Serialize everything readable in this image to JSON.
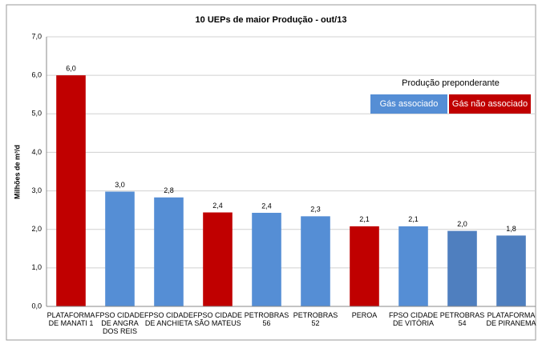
{
  "chart_data": {
    "type": "bar",
    "title": "10 UEPs de maior Produção - out/13",
    "y_label": "Milhões de m³/d",
    "categories": [
      "PLATAFORMA DE MANATI 1",
      "FPSO CIDADE DE ANGRA DOS REIS",
      "FPSO CIDADE DE ANCHIETA",
      "FPSO CIDADE SÃO MATEUS",
      "PETROBRAS 56",
      "PETROBRAS 52",
      "PEROA",
      "FPSO CIDADE DE VITÓRIA",
      "PETROBRAS 54",
      "PLATAFORMA DE PIRANEMA"
    ],
    "values": [
      6.0,
      2.98,
      2.83,
      2.44,
      2.43,
      2.34,
      2.08,
      2.08,
      1.96,
      1.84
    ],
    "value_labels": [
      "6,0",
      "3,0",
      "2,8",
      "2,4",
      "2,4",
      "2,3",
      "2,1",
      "2,1",
      "2,0",
      "1,8"
    ],
    "colors": [
      "#c00000",
      "#558ed5",
      "#558ed5",
      "#c00000",
      "#558ed5",
      "#558ed5",
      "#c00000",
      "#558ed5",
      "#4f7fbf",
      "#4f7fbf"
    ],
    "ylim": [
      0,
      7
    ],
    "yticks": [
      {
        "value": 0,
        "label": "0,0"
      },
      {
        "value": 1,
        "label": "1,0"
      },
      {
        "value": 2,
        "label": "2,0"
      },
      {
        "value": 3,
        "label": "3,0"
      },
      {
        "value": 4,
        "label": "4,0"
      },
      {
        "value": 5,
        "label": "5,0"
      },
      {
        "value": 6,
        "label": "6,0"
      },
      {
        "value": 7,
        "label": "7,0"
      }
    ],
    "grid": true,
    "legend": {
      "title": "Produção preponderante",
      "items": [
        {
          "label": "Gás associado",
          "color": "#558ed5"
        },
        {
          "label": "Gás não associado",
          "color": "#c00000"
        }
      ]
    }
  }
}
